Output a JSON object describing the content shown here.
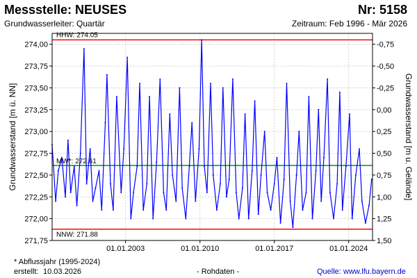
{
  "header": {
    "title": "Messstelle: NEUSES",
    "number": "Nr: 5158",
    "aquifer": "Grundwasserleiter: Quartär",
    "period": "Zeitraum: Feb 1996 - Mär 2026"
  },
  "footer": {
    "note": "* Abflussjahr (1995-2024)",
    "created_label": "erstellt:",
    "created_date": "10.03.2026",
    "data_kind": "- Rohdaten -",
    "source_label": "Quelle:",
    "source_url": "www.lfu.bayern.de"
  },
  "chart_data": {
    "type": "line",
    "title": "",
    "ylabel": "Grundwasserstand [m ü. NN]",
    "y2label": "Grundwasserstand [m u. Gelände]",
    "ylim": [
      271.75,
      274.125
    ],
    "yticks": [
      271.75,
      272.0,
      272.25,
      272.5,
      272.75,
      273.0,
      273.25,
      273.5,
      273.75,
      274.0
    ],
    "ytick_labels": [
      "271,75",
      "272,00",
      "272,25",
      "272,50",
      "272,75",
      "273,00",
      "273,25",
      "273,50",
      "273,75",
      "274,00"
    ],
    "y2_ground_level": 273.25,
    "y2ticks": [
      -0.75,
      -0.5,
      -0.25,
      0.0,
      0.25,
      0.5,
      0.75,
      1.0,
      1.25,
      1.5
    ],
    "y2tick_labels": [
      "-0,75",
      "-0,50",
      "-0,25",
      "0,00",
      "0,25",
      "0,50",
      "0,75",
      "1,00",
      "1,25",
      "1,50"
    ],
    "xlim": [
      "1996-02-01",
      "2026-03-31"
    ],
    "xticks": [
      "2003-01-01",
      "2010-01-01",
      "2017-01-01",
      "2024-01-01"
    ],
    "xtick_labels": [
      "01.01.2003",
      "01.01.2010",
      "01.01.2017",
      "01.01.2024"
    ],
    "grid": true,
    "reference_lines": [
      {
        "label": "HHW: 274.05",
        "value": 274.05,
        "color": "#ff0000"
      },
      {
        "label": "MW*: 272.61",
        "value": 272.61,
        "color": "#009900"
      },
      {
        "label": "NNW: 271.88",
        "value": 271.88,
        "color": "#ff0000"
      }
    ],
    "series": [
      {
        "color": "#0000ff",
        "x": [
          "1996-02-01",
          "1996-06-01",
          "1996-09-01",
          "1997-01-01",
          "1997-05-01",
          "1997-08-01",
          "1997-11-01",
          "1998-03-01",
          "1998-06-01",
          "1998-10-01",
          "1999-02-01",
          "1999-05-01",
          "1999-09-01",
          "1999-12-01",
          "2000-03-01",
          "2000-07-01",
          "2000-10-01",
          "2001-02-01",
          "2001-04-01",
          "2001-08-01",
          "2001-11-01",
          "2002-03-01",
          "2002-08-01",
          "2002-11-01",
          "2003-03-01",
          "2003-07-01",
          "2003-10-01",
          "2004-02-01",
          "2004-05-01",
          "2004-09-01",
          "2005-01-01",
          "2005-04-01",
          "2005-08-01",
          "2005-12-01",
          "2006-04-01",
          "2006-08-01",
          "2006-11-01",
          "2007-03-01",
          "2007-06-01",
          "2007-10-01",
          "2008-02-01",
          "2008-05-01",
          "2008-09-01",
          "2009-01-01",
          "2009-04-01",
          "2009-08-01",
          "2009-12-01",
          "2010-03-01",
          "2010-06-01",
          "2010-09-01",
          "2011-01-01",
          "2011-04-01",
          "2011-08-01",
          "2011-12-01",
          "2012-03-01",
          "2012-07-01",
          "2012-10-01",
          "2013-02-01",
          "2013-06-01",
          "2013-09-01",
          "2014-01-01",
          "2014-04-01",
          "2014-08-01",
          "2014-12-01",
          "2015-03-01",
          "2015-07-01",
          "2015-10-01",
          "2016-02-01",
          "2016-05-01",
          "2016-09-01",
          "2017-01-01",
          "2017-04-01",
          "2017-08-01",
          "2017-12-01",
          "2018-03-01",
          "2018-07-01",
          "2018-10-01",
          "2019-02-01",
          "2019-05-01",
          "2019-09-01",
          "2020-01-01",
          "2020-04-01",
          "2020-08-01",
          "2020-12-01",
          "2021-03-01",
          "2021-06-01",
          "2021-09-01",
          "2022-01-01",
          "2022-04-01",
          "2022-08-01",
          "2022-12-01",
          "2023-03-01",
          "2023-06-01",
          "2023-10-01",
          "2024-02-01",
          "2024-05-01",
          "2024-09-01",
          "2025-01-01",
          "2025-04-01",
          "2025-08-01",
          "2025-12-01",
          "2026-03-01"
        ],
        "values": [
          272.85,
          272.2,
          272.55,
          272.7,
          272.25,
          272.9,
          272.3,
          272.6,
          272.15,
          272.75,
          273.95,
          272.4,
          272.8,
          272.2,
          272.35,
          272.55,
          272.1,
          273.1,
          273.65,
          272.4,
          272.1,
          273.4,
          272.3,
          272.8,
          273.85,
          272.0,
          272.3,
          272.6,
          273.55,
          272.1,
          272.4,
          273.4,
          272.0,
          272.65,
          273.6,
          272.3,
          272.1,
          273.2,
          272.5,
          272.2,
          273.5,
          272.35,
          272.0,
          272.6,
          273.1,
          272.2,
          272.8,
          274.05,
          272.6,
          272.3,
          273.55,
          272.5,
          272.1,
          272.4,
          273.5,
          272.25,
          272.45,
          273.6,
          272.3,
          272.0,
          272.35,
          273.2,
          272.0,
          272.55,
          273.35,
          272.05,
          272.5,
          273.0,
          272.3,
          272.1,
          272.4,
          272.7,
          271.95,
          272.45,
          273.55,
          272.2,
          271.9,
          272.5,
          273.0,
          272.1,
          272.3,
          273.4,
          272.0,
          272.55,
          273.25,
          272.2,
          272.7,
          273.6,
          272.3,
          272.0,
          272.4,
          273.45,
          272.1,
          272.6,
          273.2,
          272.0,
          272.5,
          272.8,
          272.2,
          271.95,
          272.15,
          272.45
        ]
      }
    ]
  }
}
